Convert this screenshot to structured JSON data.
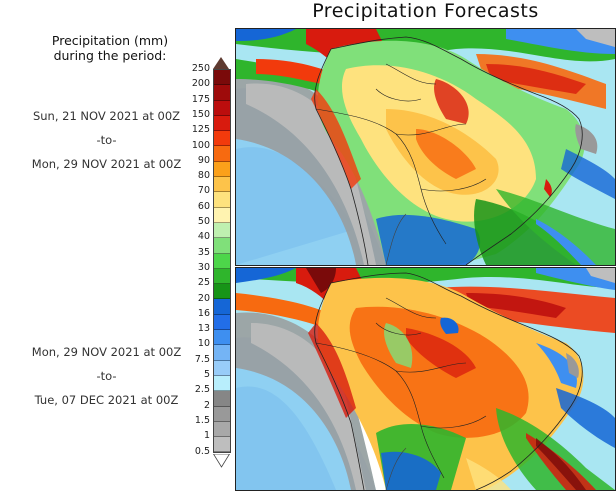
{
  "title": "Precipitation Forecasts",
  "legend": {
    "heading_line1": "Precipitation (mm)",
    "heading_line2": "during the period:",
    "units": "mm",
    "levels": [
      "250",
      "200",
      "175",
      "150",
      "125",
      "100",
      "90",
      "80",
      "70",
      "60",
      "50",
      "40",
      "35",
      "30",
      "25",
      "20",
      "16",
      "13",
      "10",
      "7.5",
      "5",
      "2.5",
      "2",
      "1.5",
      "1",
      "0.5"
    ],
    "colors": [
      "#7a0a0a",
      "#9e0b0b",
      "#bb0d0d",
      "#d81b0e",
      "#f23a0c",
      "#f76a10",
      "#fba01a",
      "#fdc34a",
      "#fee27e",
      "#fff3b0",
      "#bff0b0",
      "#80e07a",
      "#4dd64a",
      "#2fb52c",
      "#179417",
      "#1566d6",
      "#226ee8",
      "#3e8ff0",
      "#74b4f5",
      "#98ccf8",
      "#b8eefc",
      "#868686",
      "#999999",
      "#a8a8a8",
      "#bebebe"
    ],
    "over_color": "#5e3a30"
  },
  "periods": [
    {
      "start": "Sun, 21 NOV 2021 at 00Z",
      "sep": "-to-",
      "end": "Mon, 29 NOV 2021 at 00Z"
    },
    {
      "start": "Mon, 29 NOV 2021 at 00Z",
      "sep": "-to-",
      "end": "Tue, 07 DEC 2021 at 00Z"
    }
  ],
  "maps": [
    {
      "region": "South America",
      "period_index": 0
    },
    {
      "region": "South America",
      "period_index": 1
    }
  ]
}
